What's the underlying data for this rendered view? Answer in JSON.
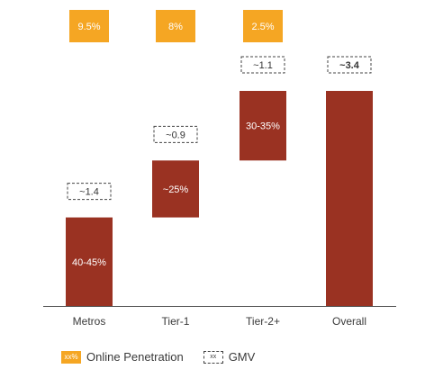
{
  "chart_data": {
    "type": "bar",
    "subtype": "waterfall",
    "categories": [
      "Metros",
      "Tier-1",
      "Tier-2+",
      "Overall"
    ],
    "segment_labels": [
      "40-45%",
      "~25%",
      "30-35%",
      ""
    ],
    "gmv": [
      "~1.4",
      "~0.9",
      "~1.1",
      "~3.4"
    ],
    "gmv_values": [
      1.4,
      0.9,
      1.1,
      3.4
    ],
    "online_penetration": [
      "9.5%",
      "8%",
      "2.5%"
    ],
    "colors": {
      "bar": "#9a3222",
      "penetration": "#f5a623",
      "text": "#3a3a3a"
    },
    "legend": {
      "penetration_swatch": "xx%",
      "penetration_label": "Online Penetration",
      "gmv_swatch": "xx",
      "gmv_label": "GMV"
    }
  }
}
